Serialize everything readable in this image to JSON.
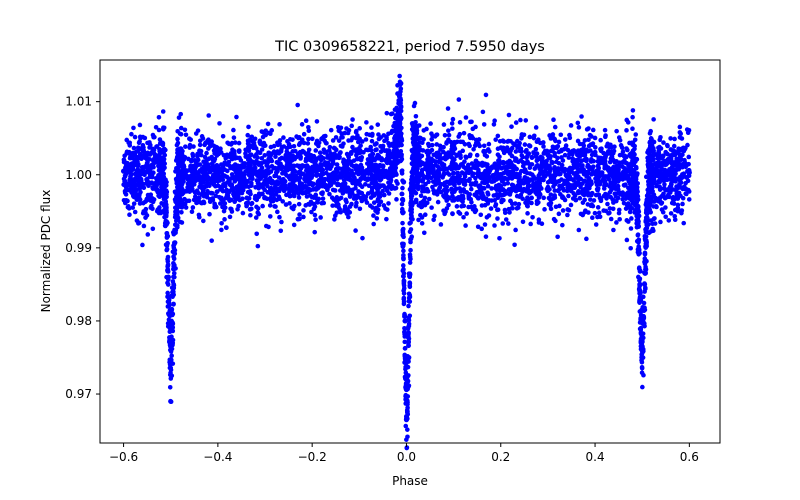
{
  "chart_data": {
    "type": "scatter",
    "title": "TIC 0309658221, period 7.5950 days",
    "xlabel": "Phase",
    "ylabel": "Normalized PDC flux",
    "xlim": [
      -0.65,
      0.665
    ],
    "ylim": [
      0.9633,
      1.0157
    ],
    "grid": false,
    "marker_color": "#0000ff",
    "x_ticks": [
      -0.6,
      -0.4,
      -0.2,
      0.0,
      0.2,
      0.4,
      0.6
    ],
    "x_tick_labels": [
      "−0.6",
      "−0.4",
      "−0.2",
      "0.0",
      "0.2",
      "0.4",
      "0.6"
    ],
    "y_ticks": [
      0.97,
      0.98,
      0.99,
      1.0,
      1.01
    ],
    "y_tick_labels": [
      "0.97",
      "0.98",
      "0.99",
      "1.00",
      "1.01"
    ],
    "series": [
      {
        "name": "PDC flux",
        "phase_range": [
          -0.6,
          0.6
        ],
        "baseline_flux": 1.0,
        "scatter_band": [
          0.9955,
          1.006
        ],
        "eclipses": [
          {
            "phase": -0.5,
            "min_flux": 0.976,
            "half_width": 0.012
          },
          {
            "phase": 0.0,
            "min_flux": 0.966,
            "half_width": 0.012
          },
          {
            "phase": 0.5,
            "min_flux": 0.976,
            "half_width": 0.012
          }
        ],
        "brightening_peak": {
          "phase": -0.012,
          "max_flux": 1.0135
        },
        "points": [
          [
            -0.6,
            1.0005
          ],
          [
            -0.56,
            1.001
          ],
          [
            -0.53,
            0.9995
          ],
          [
            -0.515,
            0.9975
          ],
          [
            -0.505,
            0.986
          ],
          [
            -0.5,
            0.9765
          ],
          [
            -0.495,
            0.984
          ],
          [
            -0.485,
            0.999
          ],
          [
            -0.45,
            1.0002
          ],
          [
            -0.4,
            1.0003
          ],
          [
            -0.3,
            1.0001
          ],
          [
            -0.2,
            1.0
          ],
          [
            -0.1,
            1.0003
          ],
          [
            -0.05,
            1.0012
          ],
          [
            -0.025,
            1.005
          ],
          [
            -0.012,
            1.0125
          ],
          [
            -0.006,
            0.999
          ],
          [
            -0.003,
            0.98
          ],
          [
            0.0,
            0.9665
          ],
          [
            0.003,
            0.979
          ],
          [
            0.008,
            0.998
          ],
          [
            0.015,
            1.006
          ],
          [
            0.05,
            1.0008
          ],
          [
            0.1,
            1.0002
          ],
          [
            0.2,
            1.0
          ],
          [
            0.3,
            1.0001
          ],
          [
            0.4,
            1.0002
          ],
          [
            0.46,
            1.0
          ],
          [
            0.485,
            0.9975
          ],
          [
            0.495,
            0.985
          ],
          [
            0.5,
            0.9765
          ],
          [
            0.505,
            0.985
          ],
          [
            0.515,
            0.9985
          ],
          [
            0.55,
            1.0005
          ],
          [
            0.6,
            1.0003
          ]
        ]
      }
    ]
  }
}
